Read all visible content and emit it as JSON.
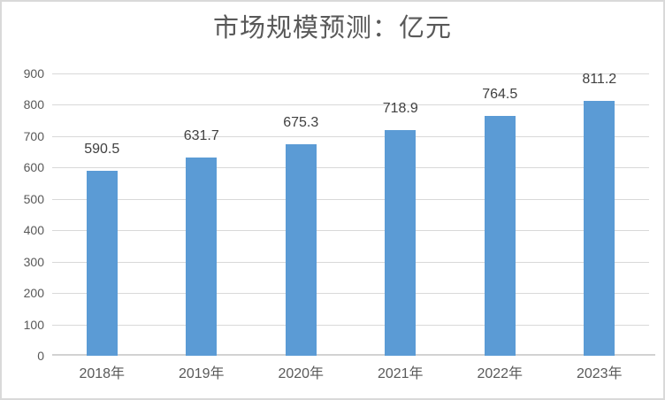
{
  "chart_data": {
    "type": "bar",
    "title": "市场规模预测：亿元",
    "categories": [
      "2018年",
      "2019年",
      "2020年",
      "2021年",
      "2022年",
      "2023年"
    ],
    "values": [
      590.5,
      631.7,
      675.3,
      718.9,
      764.5,
      811.2
    ],
    "xlabel": "",
    "ylabel": "",
    "ylim": [
      0,
      900
    ],
    "y_ticks": [
      0,
      100,
      200,
      300,
      400,
      500,
      600,
      700,
      800,
      900
    ],
    "grid": true,
    "legend": "none",
    "data_labels": true,
    "colors": {
      "bar": "#5B9BD5",
      "gridline": "#D9D9D9",
      "axis_line": "#D2D2D2",
      "title_text": "#595959",
      "axis_text": "#595959",
      "data_label_text": "#404040",
      "background": "#FFFFFF",
      "border": "#D9D9D9"
    }
  }
}
